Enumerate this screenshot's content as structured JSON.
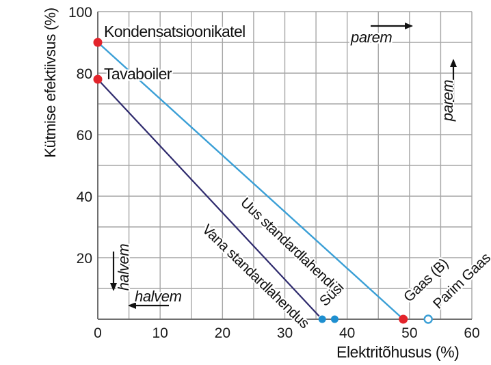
{
  "chart_data": {
    "type": "line",
    "title": "",
    "xlabel": "Elektritõhusus (%)",
    "ylabel": "Kütmise efektiivsus (%)",
    "xlim": [
      0,
      60
    ],
    "ylim": [
      0,
      100
    ],
    "x_ticks": [
      0,
      10,
      20,
      30,
      40,
      50,
      60
    ],
    "y_ticks": [
      100,
      80,
      60,
      40,
      20
    ],
    "grid": {
      "on": true,
      "x_step": 5,
      "y_step": 10,
      "color": "#a6a6a6"
    },
    "series": [
      {
        "name": "Uus standardlahendus",
        "color": "#3a9fd6",
        "width": 2.4,
        "points": [
          [
            0,
            90
          ],
          [
            49,
            0
          ]
        ]
      },
      {
        "name": "Vana standardlahendus",
        "color": "#2e2a6d",
        "width": 2.2,
        "points": [
          [
            0,
            78
          ],
          [
            35.5,
            1
          ]
        ]
      }
    ],
    "points": [
      {
        "label": "Kondensatsioonikatel",
        "x": 0,
        "y": 90,
        "marker": "filled",
        "color": "#e3242b",
        "r": 6.5
      },
      {
        "label": "Tavaboiler",
        "x": 0,
        "y": 78,
        "marker": "filled",
        "color": "#e3242b",
        "r": 6.5
      },
      {
        "label": "Süsi",
        "x": 36,
        "y": 0,
        "marker": "filled",
        "color": "#1e8fd0",
        "r": 5.5
      },
      {
        "label": "Süsi",
        "x": 38,
        "y": 0,
        "marker": "filled",
        "color": "#1e8fd0",
        "r": 5.5
      },
      {
        "label": "Gaas (B)",
        "x": 49,
        "y": 0,
        "marker": "filled",
        "color": "#e3242b",
        "r": 6.5
      },
      {
        "label": "Parim Gaas",
        "x": 53,
        "y": 0,
        "marker": "open",
        "color": "#3a9fd6",
        "r": 5.5
      }
    ],
    "point_labels": {
      "kondensatsioonikatel": "Kondensatsioonikatel",
      "tavaboiler": "Tavaboiler",
      "susi": "Süsi",
      "gaas_b": "Gaas (B)",
      "parim_gaas": "Parim Gaas"
    },
    "line_labels": {
      "uus": "Uus standardlahendus",
      "vana": "Vana standardlahendus"
    },
    "direction_labels": {
      "better": "parem",
      "worse": "halvem"
    },
    "colors": {
      "new_standard_line": "#3a9fd6",
      "old_standard_line": "#2e2a6d",
      "boiler_points": "#e3242b",
      "coal_points": "#1e8fd0",
      "grid": "#a6a6a6",
      "axis": "#6f6f6f"
    }
  }
}
